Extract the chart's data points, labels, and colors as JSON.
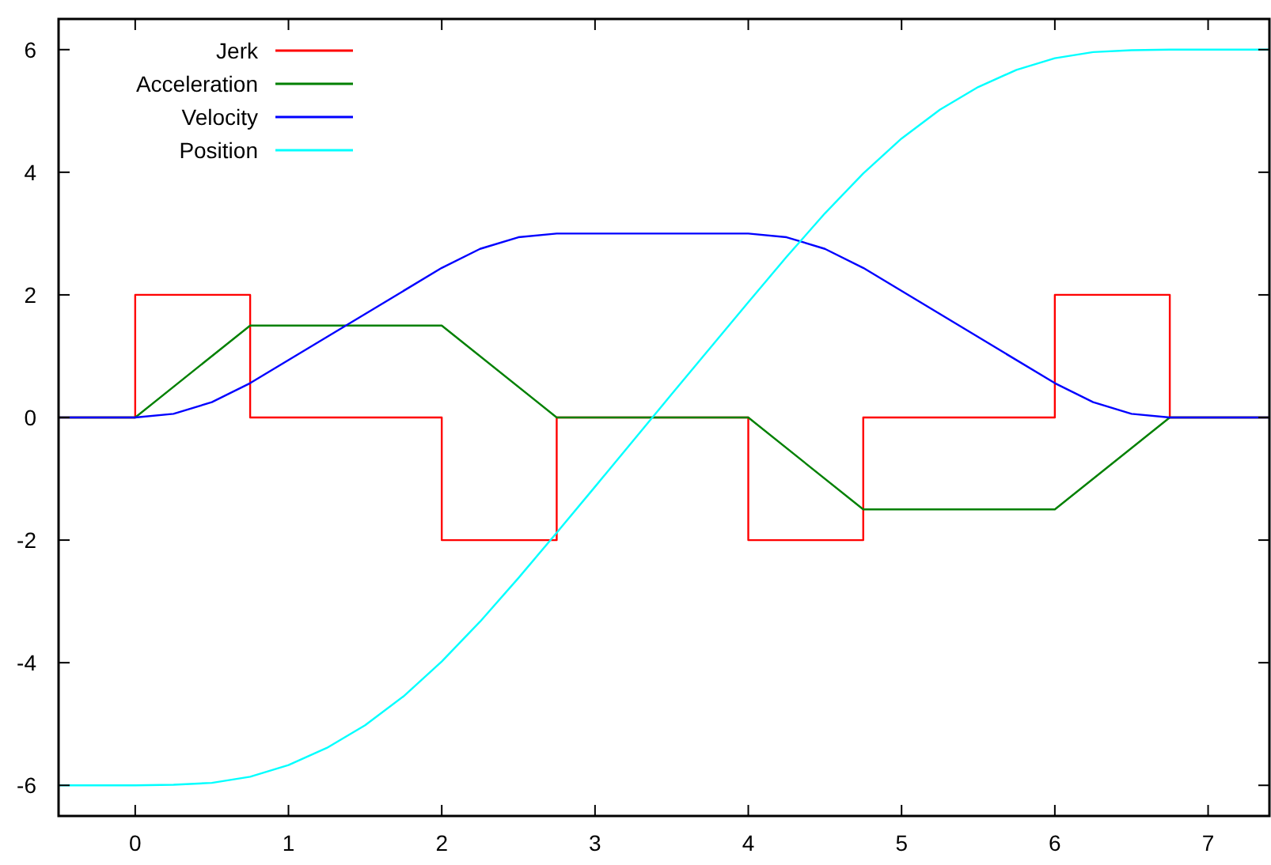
{
  "chart_data": {
    "type": "line",
    "xlim": [
      -0.5,
      7.4
    ],
    "ylim": [
      -6.5,
      6.5
    ],
    "xticks": [
      0,
      1,
      2,
      3,
      4,
      5,
      6,
      7
    ],
    "yticks": [
      -6,
      -4,
      -2,
      0,
      2,
      4,
      6
    ],
    "grid": false,
    "legend": "top left",
    "marker": "none",
    "line_style": "solid",
    "series": [
      {
        "name": "Jerk",
        "color": "#ff0000",
        "x": [
          -0.5,
          0,
          0,
          0.75,
          0.75,
          2,
          2,
          2.75,
          2.75,
          4,
          4,
          4.75,
          4.75,
          6,
          6,
          6.75,
          6.75,
          7.4
        ],
        "values": [
          0,
          0,
          2,
          2,
          0,
          0,
          -2,
          -2,
          0,
          0,
          -2,
          -2,
          0,
          0,
          2,
          2,
          0,
          0
        ]
      },
      {
        "name": "Acceleration",
        "color": "#008000",
        "x": [
          -0.5,
          0,
          0.75,
          2,
          2.75,
          4,
          4.75,
          6,
          6.75,
          7.4
        ],
        "values": [
          0,
          0,
          1.5,
          1.5,
          0,
          0,
          -1.5,
          -1.5,
          0,
          0
        ]
      },
      {
        "name": "Velocity",
        "color": "#0000ff",
        "x": [
          -0.5,
          0,
          0.25,
          0.5,
          0.75,
          2,
          2.25,
          2.5,
          2.75,
          4,
          4.25,
          4.5,
          4.75,
          6,
          6.25,
          6.5,
          6.75,
          7.4
        ],
        "values": [
          0,
          0,
          0.06,
          0.25,
          0.56,
          2.44,
          2.75,
          2.94,
          3,
          3,
          2.94,
          2.75,
          2.44,
          0.56,
          0.25,
          0.06,
          0,
          0
        ]
      },
      {
        "name": "Position",
        "color": "#00ffff",
        "x": [
          -0.5,
          0,
          0.25,
          0.5,
          0.75,
          1,
          1.25,
          1.5,
          1.75,
          2,
          2.25,
          2.5,
          2.75,
          3,
          3.5,
          4,
          4.25,
          4.5,
          4.75,
          5,
          5.25,
          5.5,
          5.75,
          6,
          6.25,
          6.5,
          6.75,
          7.4
        ],
        "values": [
          -6,
          -6,
          -5.99,
          -5.96,
          -5.86,
          -5.67,
          -5.39,
          -5.02,
          -4.55,
          -3.98,
          -3.33,
          -2.62,
          -1.88,
          -1.13,
          0.38,
          1.88,
          2.62,
          3.33,
          3.98,
          4.55,
          5.02,
          5.39,
          5.67,
          5.86,
          5.96,
          5.99,
          6,
          6
        ]
      }
    ]
  }
}
